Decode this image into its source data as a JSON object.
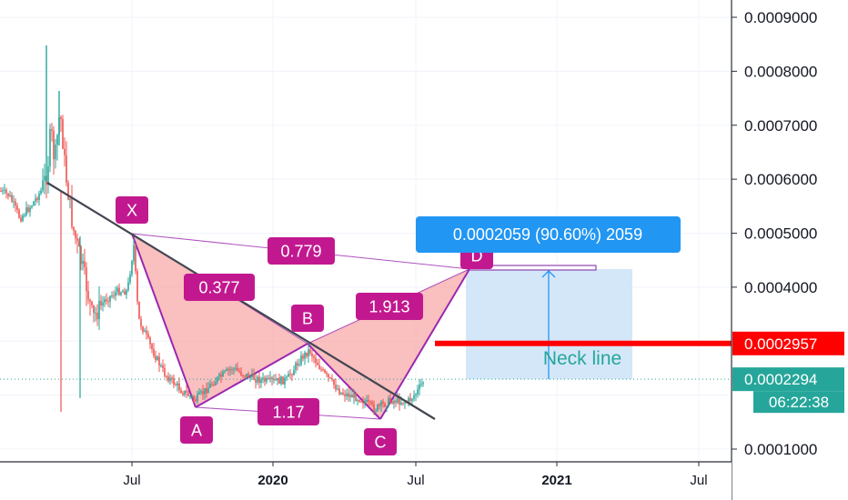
{
  "chart_data": {
    "type": "candlestick",
    "price_axis": {
      "ticks": [
        0.0009,
        0.0008,
        0.0007,
        0.0006,
        0.0005,
        0.0004,
        0.0001
      ],
      "tick_labels": [
        "0.0009000",
        "0.0008000",
        "0.0007000",
        "0.0006000",
        "0.0005000",
        "0.0004000",
        "0.0001000"
      ],
      "range": [
        9e-05,
        0.00093
      ]
    },
    "time_axis": {
      "labels": [
        "Jul",
        "2020",
        "Jul",
        "2021",
        "Jul"
      ],
      "bold": [
        false,
        true,
        false,
        true,
        false
      ]
    },
    "current_price_label": "0.0002294",
    "countdown_label": "06:22:38",
    "neck_level_label": "0.0002957",
    "neck_level": 0.0002957,
    "current_level": 0.0002294,
    "neck_text": "Neck line",
    "measure_label": "0.0002059 (90.60%) 2059",
    "points": [
      {
        "name": "X",
        "label": "X"
      },
      {
        "name": "A",
        "label": "A"
      },
      {
        "name": "B",
        "label": "B"
      },
      {
        "name": "C",
        "label": "C"
      },
      {
        "name": "D",
        "label": "D"
      }
    ],
    "ratios": [
      {
        "name": "xb",
        "label": "0.377"
      },
      {
        "name": "xd",
        "label": "0.779"
      },
      {
        "name": "bd",
        "label": "1.913"
      },
      {
        "name": "ac",
        "label": "1.17"
      }
    ],
    "colors": {
      "pattern_fill": "#f8a9a9",
      "pattern_line": "#9c27b0",
      "label_bg": "#c2188f",
      "neck_line": "#ff0000",
      "neck_text": "#26a69a",
      "measure_box": "#cde3f8",
      "measure_label_bg": "#2196f3",
      "current_badge": "#26a69a",
      "candle_up": "#26a69a",
      "candle_down": "#ef5350",
      "trendline": "#434651"
    }
  }
}
